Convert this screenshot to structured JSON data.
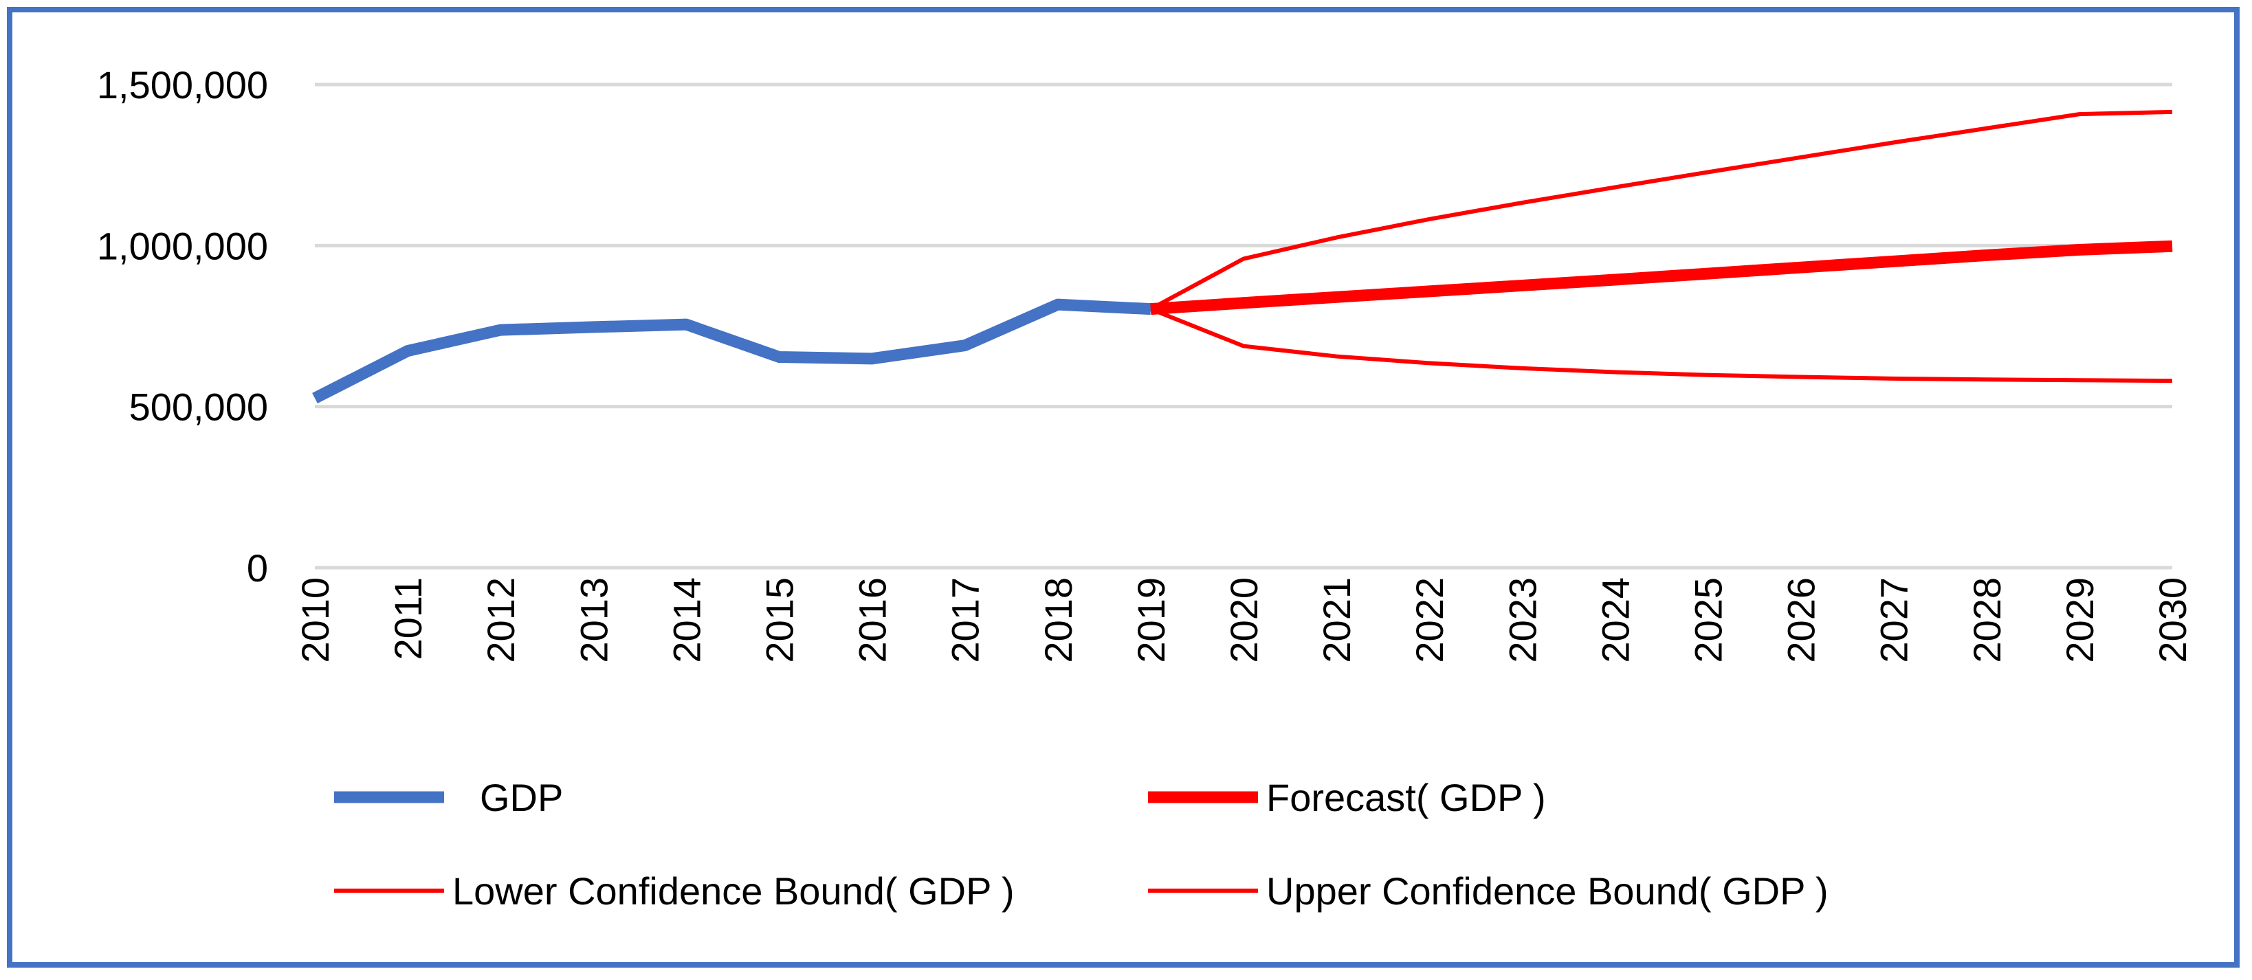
{
  "chart_data": {
    "type": "line",
    "title": "",
    "xlabel": "",
    "ylabel": "",
    "ylim": [
      0,
      1500000
    ],
    "yticks": [
      0,
      500000,
      1000000,
      1500000
    ],
    "ytick_labels": [
      "0",
      "500,000",
      "1,000,000",
      "1,500,000"
    ],
    "grid": true,
    "legend_position": "bottom",
    "categories": [
      "2010",
      "2011",
      "2012",
      "2013",
      "2014",
      "2015",
      "2016",
      "2017",
      "2018",
      "2019",
      "2020",
      "2021",
      "2022",
      "2023",
      "2024",
      "2025",
      "2026",
      "2027",
      "2028",
      "2029",
      "2030"
    ],
    "series": [
      {
        "name": "GDP",
        "color": "#4472c4",
        "style": "thick",
        "values": [
          526000,
          673000,
          738000,
          747000,
          755000,
          654000,
          649000,
          690000,
          817000,
          803000,
          null,
          null,
          null,
          null,
          null,
          null,
          null,
          null,
          null,
          null,
          null
        ]
      },
      {
        "name": "Forecast( GDP )",
        "color": "#ff0000",
        "style": "thick",
        "values": [
          null,
          null,
          null,
          null,
          null,
          null,
          null,
          null,
          null,
          803000,
          822000,
          840000,
          858000,
          876000,
          894000,
          913000,
          932000,
          951000,
          970000,
          987000,
          998000
        ]
      },
      {
        "name": "Lower Confidence Bound( GDP )",
        "color": "#ff0000",
        "style": "thin",
        "values": [
          null,
          null,
          null,
          null,
          null,
          null,
          null,
          null,
          null,
          803000,
          688000,
          656000,
          635000,
          619000,
          607000,
          598000,
          592000,
          587000,
          584000,
          582000,
          580000
        ]
      },
      {
        "name": "Upper Confidence Bound( GDP )",
        "color": "#ff0000",
        "style": "thin",
        "values": [
          null,
          null,
          null,
          null,
          null,
          null,
          null,
          null,
          null,
          803000,
          959000,
          1025000,
          1082000,
          1133000,
          1181000,
          1228000,
          1274000,
          1320000,
          1364000,
          1408000,
          1415000
        ]
      }
    ]
  },
  "colors": {
    "frame": "#4472c4",
    "grid": "#d9d9d9",
    "gdp": "#4472c4",
    "forecast": "#ff0000"
  }
}
